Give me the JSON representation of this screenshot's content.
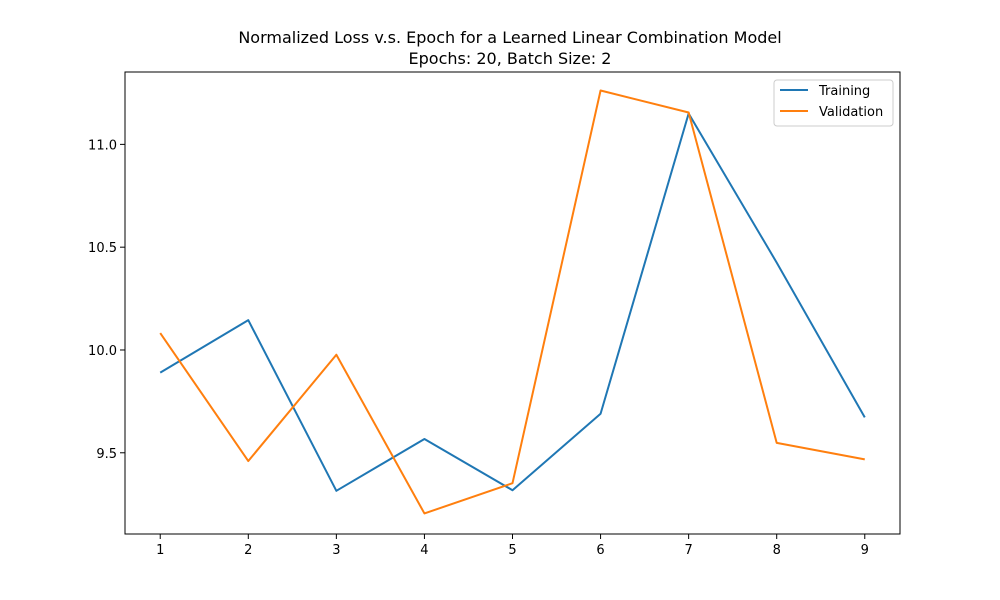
{
  "chart_data": {
    "type": "line",
    "title": "Normalized Loss v.s. Epoch for a Learned Linear Combination Model",
    "subtitle": "Epochs: 20, Batch Size: 2",
    "xlabel": "",
    "ylabel": "",
    "x": [
      1,
      2,
      3,
      4,
      5,
      6,
      7,
      8,
      9
    ],
    "xticks": [
      "1",
      "2",
      "3",
      "4",
      "5",
      "6",
      "7",
      "8",
      "9"
    ],
    "yticks": [
      "9.5",
      "10.0",
      "10.5",
      "11.0"
    ],
    "ytick_values": [
      9.5,
      10.0,
      10.5,
      11.0
    ],
    "xlim": [
      0.6,
      9.4
    ],
    "ylim": [
      9.105,
      11.352
    ],
    "grid": false,
    "legend_position": "top-right",
    "series": [
      {
        "name": "Training",
        "color": "#1f77b4",
        "values": [
          9.89,
          10.145,
          9.315,
          9.567,
          9.318,
          9.69,
          11.15,
          10.425,
          9.672
        ]
      },
      {
        "name": "Validation",
        "color": "#ff7f0e",
        "values": [
          10.082,
          9.46,
          9.977,
          9.205,
          9.352,
          11.262,
          11.155,
          9.548,
          9.468
        ]
      }
    ]
  }
}
